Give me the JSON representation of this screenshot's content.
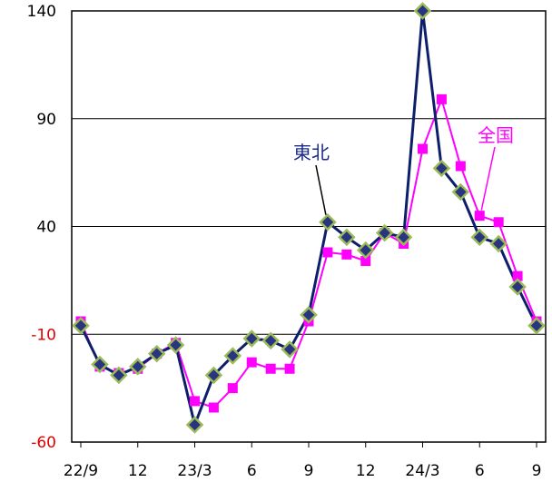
{
  "chart_data": {
    "type": "line",
    "x": [
      "22/9",
      "22/10",
      "22/11",
      "22/12",
      "23/1",
      "23/2",
      "23/3",
      "23/4",
      "23/5",
      "23/6",
      "23/7",
      "23/8",
      "23/9",
      "23/10",
      "23/11",
      "23/12",
      "24/1",
      "24/2",
      "24/3",
      "24/4",
      "24/5",
      "24/6",
      "24/7",
      "24/8",
      "24/9"
    ],
    "x_tick_labels": [
      "22/9",
      "12",
      "23/3",
      "6",
      "9",
      "12",
      "24/3",
      "6",
      "9"
    ],
    "y_tick_labels": [
      "140",
      "90",
      "40",
      "-10",
      "-60"
    ],
    "ylim": [
      -60,
      140
    ],
    "yticks": [
      140,
      90,
      40,
      -10,
      -60
    ],
    "grid": "horizontal",
    "series": [
      {
        "name": "東北",
        "color": "#0d1f6b",
        "marker_color": "#2a3580",
        "marker_edge": "#9bbb59",
        "values": [
          -6,
          -24,
          -29,
          -25,
          -19,
          -15,
          -52,
          -29,
          -20,
          -12,
          -13,
          -17,
          -1,
          42,
          35,
          29,
          37,
          35,
          140,
          67,
          56,
          35,
          32,
          12,
          -6
        ]
      },
      {
        "name": "全国",
        "color": "#ff00ff",
        "marker_color": "#ff00ff",
        "values": [
          -4,
          -25,
          -28,
          -26,
          -19,
          -14,
          -41,
          -44,
          -35,
          -23,
          -26,
          -26,
          -4,
          28,
          27,
          24,
          37,
          32,
          76,
          99,
          68,
          45,
          42,
          17,
          -4
        ]
      }
    ]
  }
}
